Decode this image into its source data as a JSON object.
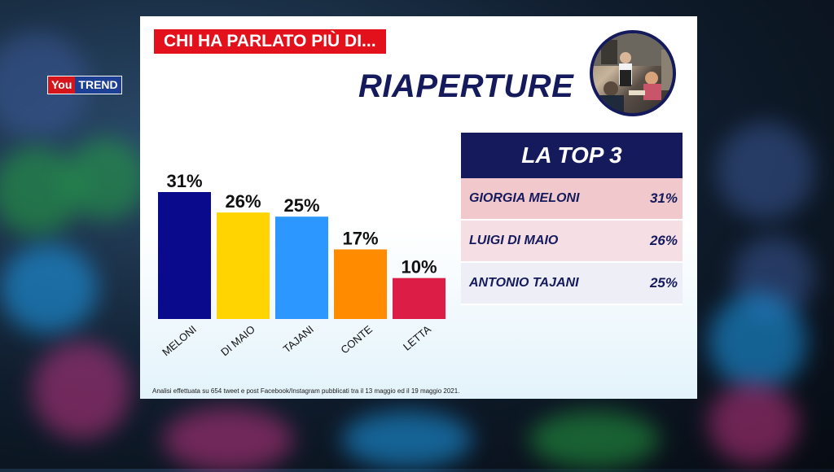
{
  "brand": {
    "part1": "You",
    "part2": "TREND"
  },
  "header": {
    "tag": "CHI HA PARLATO PIÙ DI...",
    "title": "RIAPERTURE"
  },
  "colors": {
    "navy": "#141a5c",
    "red": "#e3111b"
  },
  "chart_data": {
    "type": "bar",
    "categories": [
      "MELONI",
      "DI MAIO",
      "TAJANI",
      "CONTE",
      "LETTA"
    ],
    "values": [
      31,
      26,
      25,
      17,
      10
    ],
    "value_labels": [
      "31%",
      "26%",
      "25%",
      "17%",
      "10%"
    ],
    "colors": [
      "#0a0a8c",
      "#ffd400",
      "#2b97ff",
      "#ff8c00",
      "#dc1e46"
    ],
    "ylim": [
      0,
      31
    ],
    "grid": false
  },
  "top3": {
    "title": "LA TOP 3",
    "rows": [
      {
        "name": "GIORGIA MELONI",
        "value": "31%"
      },
      {
        "name": "LUIGI DI MAIO",
        "value": "26%"
      },
      {
        "name": "ANTONIO TAJANI",
        "value": "25%"
      }
    ]
  },
  "footnote": "Analisi effettuata su 654 tweet e post Facebook/Instagram pubblicati tra il 13 maggio ed il 19 maggio 2021."
}
